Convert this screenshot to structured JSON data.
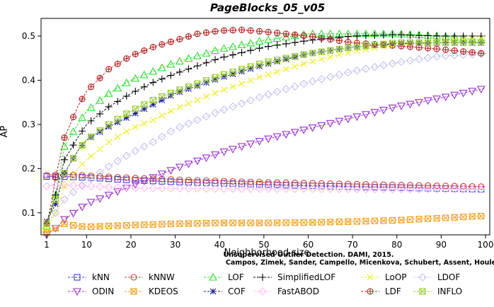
{
  "chart_data": {
    "type": "line",
    "title": "PageBlocks_05_v05",
    "xlabel": "Neighborhood size",
    "ylabel": "AP",
    "xlim": [
      1,
      100
    ],
    "ylim": [
      0.05,
      0.54
    ],
    "xticks": [
      1,
      10,
      20,
      30,
      40,
      50,
      60,
      70,
      80,
      90,
      100
    ],
    "yticks": [
      0.1,
      0.2,
      0.3,
      0.4,
      0.5
    ],
    "grid": false,
    "legend_position": "bottom",
    "watermark": [
      "Unsupervised Outlier Detection. DAMI, 2015.",
      "Campos, Zimek, Sander, Campello, Micenkova, Schubert, Assent, Houle"
    ],
    "series": [
      {
        "name": "kNN",
        "color": "#3b3bd8",
        "marker": "square",
        "x": [
          1,
          5,
          10,
          20,
          30,
          40,
          50,
          60,
          70,
          80,
          90,
          100
        ],
        "values": [
          0.182,
          0.182,
          0.18,
          0.174,
          0.17,
          0.167,
          0.164,
          0.161,
          0.159,
          0.157,
          0.155,
          0.153
        ]
      },
      {
        "name": "kNNW",
        "color": "#d23b3b",
        "marker": "circle",
        "x": [
          1,
          5,
          10,
          20,
          30,
          40,
          50,
          60,
          70,
          80,
          90,
          100
        ],
        "values": [
          0.185,
          0.187,
          0.184,
          0.179,
          0.175,
          0.172,
          0.169,
          0.167,
          0.165,
          0.163,
          0.161,
          0.159
        ]
      },
      {
        "name": "LOF",
        "color": "#33dd33",
        "marker": "triangle-up",
        "x": [
          1,
          3,
          5,
          8,
          10,
          15,
          20,
          25,
          30,
          40,
          50,
          60,
          70,
          80,
          90,
          100
        ],
        "values": [
          0.07,
          0.14,
          0.25,
          0.3,
          0.33,
          0.37,
          0.4,
          0.42,
          0.44,
          0.47,
          0.49,
          0.505,
          0.505,
          0.505,
          0.5,
          0.49
        ]
      },
      {
        "name": "SimplifiedLOF",
        "color": "#000000",
        "marker": "plus",
        "x": [
          1,
          3,
          5,
          8,
          10,
          15,
          20,
          25,
          30,
          40,
          50,
          60,
          70,
          80,
          90,
          100
        ],
        "values": [
          0.075,
          0.14,
          0.22,
          0.27,
          0.3,
          0.34,
          0.37,
          0.395,
          0.415,
          0.45,
          0.475,
          0.49,
          0.5,
          0.503,
          0.5,
          0.5
        ]
      },
      {
        "name": "LoOP",
        "color": "#eded22",
        "marker": "x",
        "x": [
          1,
          3,
          5,
          8,
          10,
          15,
          20,
          25,
          30,
          40,
          50,
          60,
          70,
          80,
          90,
          100
        ],
        "values": [
          0.06,
          0.1,
          0.16,
          0.2,
          0.22,
          0.26,
          0.29,
          0.31,
          0.335,
          0.375,
          0.41,
          0.44,
          0.465,
          0.48,
          0.49,
          0.495
        ]
      },
      {
        "name": "LDOF",
        "color": "#c2c2f0",
        "marker": "diamond",
        "x": [
          1,
          3,
          5,
          8,
          10,
          15,
          20,
          25,
          30,
          40,
          50,
          60,
          70,
          80,
          90,
          100
        ],
        "values": [
          0.075,
          0.1,
          0.13,
          0.155,
          0.17,
          0.205,
          0.235,
          0.26,
          0.29,
          0.33,
          0.365,
          0.395,
          0.42,
          0.44,
          0.455,
          0.46
        ]
      },
      {
        "name": "ODIN",
        "color": "#9933cc",
        "marker": "triangle-down",
        "x": [
          1,
          3,
          5,
          10,
          15,
          20,
          25,
          30,
          40,
          50,
          60,
          70,
          80,
          90,
          100
        ],
        "values": [
          0.05,
          0.065,
          0.085,
          0.12,
          0.14,
          0.16,
          0.18,
          0.2,
          0.235,
          0.265,
          0.29,
          0.315,
          0.34,
          0.36,
          0.382
        ]
      },
      {
        "name": "KDEOS",
        "color": "#f0a020",
        "marker": "square-x",
        "x": [
          1,
          3,
          5,
          8,
          10,
          20,
          30,
          40,
          50,
          60,
          70,
          80,
          90,
          100
        ],
        "values": [
          0.055,
          0.065,
          0.075,
          0.07,
          0.068,
          0.072,
          0.075,
          0.077,
          0.077,
          0.078,
          0.08,
          0.083,
          0.088,
          0.093
        ]
      },
      {
        "name": "COF",
        "color": "#1a1a8c",
        "marker": "asterisk",
        "x": [
          1,
          3,
          5,
          8,
          10,
          15,
          20,
          25,
          30,
          40,
          50,
          60,
          70,
          80,
          90,
          100
        ],
        "values": [
          0.08,
          0.12,
          0.19,
          0.24,
          0.265,
          0.295,
          0.32,
          0.345,
          0.37,
          0.405,
          0.435,
          0.46,
          0.475,
          0.483,
          0.485,
          0.485
        ]
      },
      {
        "name": "FastABOD",
        "color": "#ffbbf0",
        "marker": "diamond",
        "x": [
          1,
          5,
          10,
          20,
          30,
          40,
          50,
          60,
          70,
          80,
          90,
          100
        ],
        "values": [
          0.16,
          0.163,
          0.16,
          0.156,
          0.155,
          0.154,
          0.154,
          0.154,
          0.153,
          0.153,
          0.153,
          0.153
        ]
      },
      {
        "name": "LDF",
        "color": "#b22222",
        "marker": "circle-plus",
        "x": [
          1,
          2,
          3,
          5,
          8,
          10,
          15,
          20,
          25,
          30,
          35,
          40,
          45,
          50,
          60,
          70,
          80,
          90,
          100
        ],
        "values": [
          0.075,
          0.12,
          0.18,
          0.27,
          0.34,
          0.375,
          0.425,
          0.455,
          0.475,
          0.49,
          0.505,
          0.512,
          0.514,
          0.51,
          0.5,
          0.485,
          0.478,
          0.47,
          0.46
        ]
      },
      {
        "name": "INFLO",
        "color": "#99cc33",
        "marker": "square-x",
        "x": [
          1,
          3,
          5,
          8,
          10,
          15,
          20,
          25,
          30,
          40,
          50,
          60,
          70,
          80,
          90,
          100
        ],
        "values": [
          0.075,
          0.13,
          0.19,
          0.24,
          0.265,
          0.3,
          0.33,
          0.355,
          0.375,
          0.41,
          0.44,
          0.46,
          0.475,
          0.485,
          0.485,
          0.485
        ]
      }
    ]
  }
}
